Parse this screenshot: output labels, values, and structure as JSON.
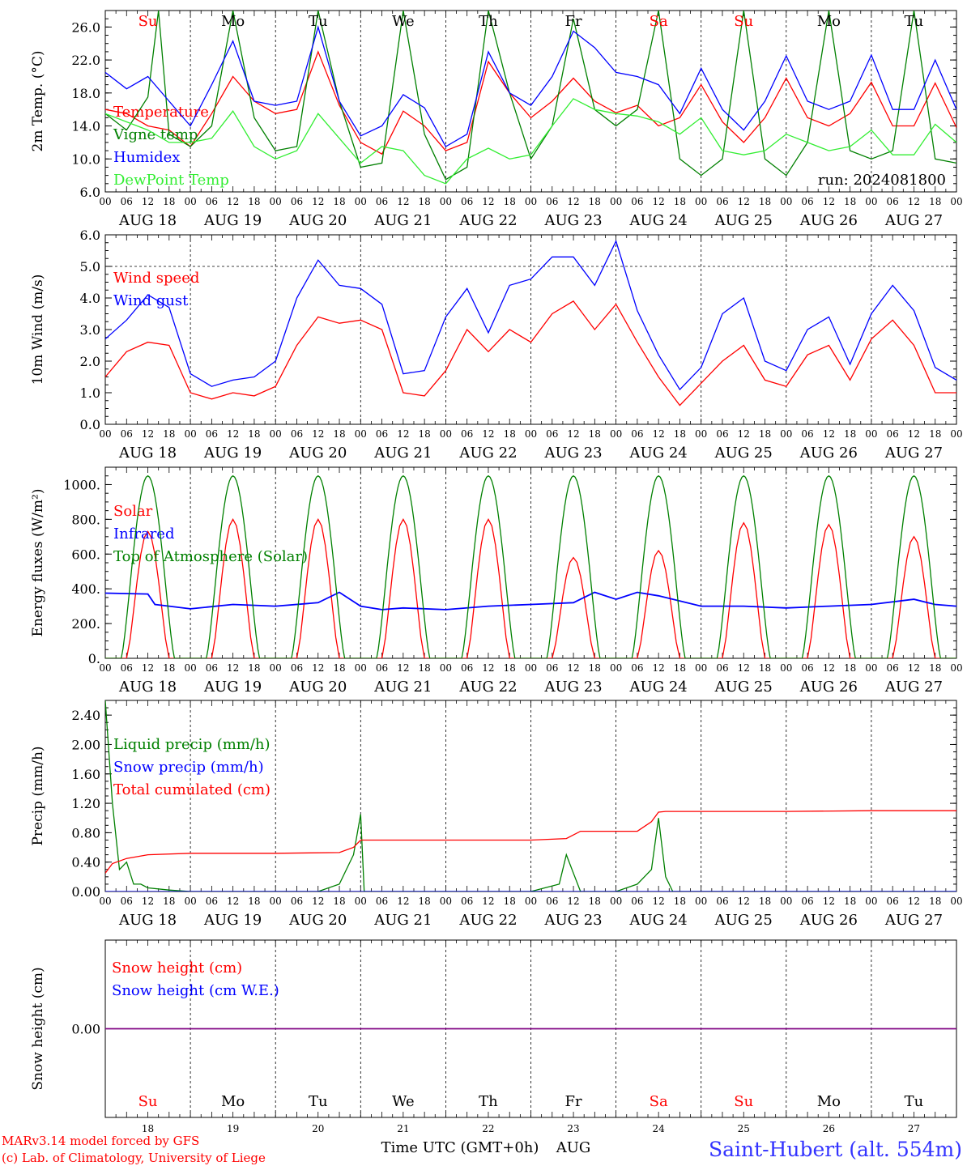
{
  "title": "Saint-Hubert (alt. 554m)",
  "run_label": "run: 2024081800",
  "footer": {
    "model_line": "MARv3.14 model forced by GFS",
    "copyright_line": "(c) Lab. of Climatology, University of Liege",
    "xaxis_title": "Time UTC (GMT+0h)",
    "month_label": "AUG"
  },
  "colors": {
    "red": "#ff0000",
    "green": "#008000",
    "blue": "#0000ff",
    "lightgreen": "#33ee33",
    "title": "#3333ff",
    "purple": "#800080"
  },
  "days": {
    "names": [
      "Su",
      "Mo",
      "Tu",
      "We",
      "Th",
      "Fr",
      "Sa",
      "Su",
      "Mo",
      "Tu"
    ],
    "name_colors": [
      "red",
      "black",
      "black",
      "black",
      "black",
      "black",
      "red",
      "red",
      "black",
      "black"
    ],
    "dates": [
      "AUG 18",
      "AUG 19",
      "AUG 20",
      "AUG 21",
      "AUG 22",
      "AUG 23",
      "AUG 24",
      "AUG 25",
      "AUG 26",
      "AUG 27"
    ],
    "numbers": [
      "18",
      "19",
      "20",
      "21",
      "22",
      "23",
      "24",
      "25",
      "26",
      "27"
    ],
    "hour_ticks": [
      "00",
      "06",
      "12",
      "18"
    ],
    "final_tick": "00"
  },
  "chart_data": [
    {
      "id": "temp",
      "type": "line",
      "ylabel": "2m Temp. (°C)",
      "ylim": [
        6,
        28
      ],
      "yticks": [
        "6.0",
        "10.0",
        "14.0",
        "18.0",
        "22.0",
        "26.0"
      ],
      "ytick_values": [
        6,
        10,
        14,
        18,
        22,
        26
      ],
      "x_unit": "hours since AUG 18 00 UTC",
      "series": [
        {
          "name": "Temperature",
          "color": "red",
          "x": [
            0,
            6,
            12,
            18,
            24,
            30,
            36,
            42,
            48,
            54,
            60,
            66,
            72,
            78,
            84,
            90,
            96,
            102,
            108,
            114,
            120,
            126,
            132,
            138,
            144,
            150,
            156,
            162,
            168,
            174,
            180,
            186,
            192,
            198,
            204,
            210,
            216,
            222,
            228,
            234,
            240
          ],
          "y": [
            16,
            15.5,
            14,
            13.5,
            11.5,
            15.5,
            20,
            17,
            15.5,
            16,
            23,
            16.5,
            12,
            10.6,
            15.8,
            14,
            11,
            12,
            21.8,
            18,
            15,
            17,
            19.8,
            17,
            15.6,
            16.5,
            14,
            15,
            19,
            14.5,
            12,
            15,
            19.8,
            15,
            14,
            15.5,
            19.3,
            14,
            14,
            19.2,
            13.8
          ]
        },
        {
          "name": "Vigne temp",
          "color": "green",
          "x": [
            0,
            6,
            12,
            15,
            18,
            24,
            30,
            36,
            42,
            48,
            54,
            60,
            66,
            72,
            78,
            84,
            90,
            96,
            102,
            108,
            114,
            120,
            126,
            132,
            138,
            144,
            150,
            156,
            162,
            168,
            174,
            180,
            186,
            192,
            198,
            204,
            210,
            216,
            222,
            228,
            234,
            240
          ],
          "y": [
            15.5,
            13.5,
            17.5,
            28,
            13,
            11.5,
            14,
            28,
            15,
            11,
            11.5,
            28,
            17,
            9,
            9.5,
            28,
            13,
            7.5,
            9,
            28,
            18,
            10,
            14,
            27,
            16,
            14,
            16,
            28,
            10,
            8,
            10,
            28,
            10,
            8,
            12,
            28,
            11,
            10,
            11,
            28,
            10,
            9.5
          ]
        },
        {
          "name": "Humidex",
          "color": "blue",
          "x": [
            0,
            6,
            12,
            18,
            24,
            30,
            36,
            42,
            48,
            54,
            60,
            66,
            72,
            78,
            84,
            90,
            96,
            102,
            108,
            114,
            120,
            126,
            132,
            138,
            144,
            150,
            156,
            162,
            168,
            174,
            180,
            186,
            192,
            198,
            204,
            210,
            216,
            222,
            228,
            234,
            240
          ],
          "y": [
            20.5,
            18.5,
            20,
            17,
            14,
            19,
            24.3,
            17,
            16.5,
            17,
            26,
            17,
            12.8,
            14,
            17.8,
            16.2,
            11.5,
            13,
            23,
            18,
            16.5,
            20,
            25.5,
            23.5,
            20.5,
            20,
            19,
            15.5,
            21,
            16,
            13.5,
            17,
            22.5,
            17,
            16,
            17,
            22.6,
            16,
            16,
            22,
            16
          ]
        },
        {
          "name": "DewPoint Temp",
          "color": "lightgreen",
          "x": [
            0,
            6,
            12,
            18,
            24,
            30,
            36,
            42,
            48,
            54,
            60,
            66,
            72,
            78,
            84,
            90,
            96,
            102,
            108,
            114,
            120,
            126,
            132,
            138,
            144,
            150,
            156,
            162,
            168,
            174,
            180,
            186,
            192,
            198,
            204,
            210,
            216,
            222,
            228,
            234,
            240
          ],
          "y": [
            15.5,
            14.5,
            13.5,
            12,
            12,
            12.5,
            15.8,
            11.5,
            10,
            11,
            15.5,
            12.5,
            9.5,
            11.5,
            11,
            8,
            7,
            10,
            11.3,
            10,
            10.5,
            14,
            17.3,
            16,
            15.5,
            15.2,
            14.5,
            13,
            15,
            11,
            10.5,
            11,
            13,
            12,
            11,
            11.5,
            13.5,
            10.5,
            10.5,
            14.2,
            12
          ]
        }
      ]
    },
    {
      "id": "wind",
      "type": "line",
      "ylabel": "10m Wind (m/s)",
      "ylim": [
        0,
        6
      ],
      "yticks": [
        "0.0",
        "1.0",
        "2.0",
        "3.0",
        "4.0",
        "5.0",
        "6.0"
      ],
      "ytick_values": [
        0,
        1,
        2,
        3,
        4,
        5,
        6
      ],
      "reference_line": 5.0,
      "series": [
        {
          "name": "Wind speed",
          "color": "red",
          "x": [
            0,
            6,
            12,
            18,
            24,
            30,
            36,
            42,
            48,
            54,
            60,
            66,
            72,
            78,
            84,
            90,
            96,
            102,
            108,
            114,
            120,
            126,
            132,
            138,
            144,
            150,
            156,
            162,
            168,
            174,
            180,
            186,
            192,
            198,
            204,
            210,
            216,
            222,
            228,
            234,
            240
          ],
          "y": [
            1.5,
            2.3,
            2.6,
            2.5,
            1.0,
            0.8,
            1.0,
            0.9,
            1.2,
            2.5,
            3.4,
            3.2,
            3.3,
            3.0,
            1.0,
            0.9,
            1.7,
            3.0,
            2.3,
            3.0,
            2.6,
            3.5,
            3.9,
            3.0,
            3.8,
            2.6,
            1.5,
            0.6,
            1.3,
            2.0,
            2.5,
            1.4,
            1.2,
            2.2,
            2.5,
            1.4,
            2.7,
            3.3,
            2.5,
            1.0,
            1.0
          ]
        },
        {
          "name": "Wind gust",
          "color": "blue",
          "x": [
            0,
            6,
            12,
            18,
            24,
            30,
            36,
            42,
            48,
            54,
            60,
            66,
            72,
            78,
            84,
            90,
            96,
            102,
            108,
            114,
            120,
            126,
            132,
            138,
            144,
            150,
            156,
            162,
            168,
            174,
            180,
            186,
            192,
            198,
            204,
            210,
            216,
            222,
            228,
            234,
            240
          ],
          "y": [
            2.7,
            3.3,
            4.1,
            3.7,
            1.6,
            1.2,
            1.4,
            1.5,
            2.0,
            4.0,
            5.2,
            4.4,
            4.3,
            3.8,
            1.6,
            1.7,
            3.4,
            4.3,
            2.9,
            4.4,
            4.6,
            5.3,
            5.3,
            4.4,
            5.8,
            3.6,
            2.2,
            1.1,
            1.8,
            3.5,
            4.0,
            2.0,
            1.7,
            3.0,
            3.4,
            1.9,
            3.5,
            4.4,
            3.6,
            1.8,
            1.4
          ]
        }
      ]
    },
    {
      "id": "energy",
      "type": "line",
      "ylabel": "Energy fluxes (W/m²)",
      "ylim": [
        0,
        1100
      ],
      "yticks": [
        "0.",
        "200.",
        "400.",
        "600.",
        "800.",
        "1000."
      ],
      "ytick_values": [
        0,
        200,
        400,
        600,
        800,
        1000
      ],
      "series": [
        {
          "name": "Solar",
          "color": "red",
          "day_peaks": [
            730,
            800,
            800,
            800,
            800,
            580,
            620,
            780,
            770,
            700
          ]
        },
        {
          "name": "Infrared",
          "color": "blue",
          "x": [
            0,
            12,
            14,
            18,
            24,
            36,
            48,
            60,
            66,
            72,
            78,
            84,
            96,
            108,
            120,
            132,
            138,
            144,
            150,
            156,
            168,
            180,
            192,
            204,
            216,
            228,
            234,
            240
          ],
          "y": [
            375,
            370,
            310,
            300,
            285,
            310,
            300,
            320,
            380,
            300,
            280,
            290,
            280,
            300,
            310,
            320,
            380,
            340,
            380,
            360,
            300,
            300,
            290,
            300,
            310,
            340,
            310,
            300
          ]
        },
        {
          "name": "Top of Atmosphere (Solar)",
          "color": "green",
          "peak": 1050
        }
      ]
    },
    {
      "id": "precip",
      "type": "line",
      "ylabel": "Precip (mm/h)",
      "ylim": [
        0,
        2.6
      ],
      "yticks": [
        "0.00",
        "0.40",
        "0.80",
        "1.20",
        "1.60",
        "2.00",
        "2.40"
      ],
      "ytick_values": [
        0,
        0.4,
        0.8,
        1.2,
        1.6,
        2.0,
        2.4
      ],
      "series": [
        {
          "name": "Liquid precip (mm/h)",
          "color": "green",
          "x": [
            0,
            2,
            4,
            6,
            8,
            10,
            12,
            18,
            24,
            60,
            66,
            70,
            72,
            73,
            120,
            128,
            130,
            132,
            134,
            144,
            150,
            154,
            156,
            158,
            160,
            240
          ],
          "y": [
            2.6,
            1.2,
            0.3,
            0.4,
            0.1,
            0.1,
            0.05,
            0.02,
            0,
            0,
            0.1,
            0.5,
            1.05,
            0,
            0,
            0.1,
            0.5,
            0.25,
            0,
            0,
            0.1,
            0.3,
            1.0,
            0.2,
            0,
            0
          ]
        },
        {
          "name": "Snow precip (mm/h)",
          "color": "blue",
          "x": [
            0,
            240
          ],
          "y": [
            0,
            0
          ]
        },
        {
          "name": "Total cumulated (cm)",
          "color": "red",
          "x": [
            0,
            2,
            6,
            12,
            24,
            48,
            66,
            70,
            72,
            74,
            96,
            120,
            130,
            134,
            140,
            150,
            154,
            156,
            158,
            168,
            192,
            216,
            240
          ],
          "y": [
            0.25,
            0.38,
            0.45,
            0.5,
            0.52,
            0.52,
            0.53,
            0.6,
            0.7,
            0.7,
            0.7,
            0.7,
            0.72,
            0.82,
            0.82,
            0.82,
            0.95,
            1.08,
            1.09,
            1.09,
            1.09,
            1.1,
            1.1
          ]
        }
      ]
    },
    {
      "id": "snow",
      "type": "line",
      "ylabel": "Snow height (cm)",
      "ylim": [
        -1,
        1
      ],
      "yticks": [
        "0.00"
      ],
      "ytick_values": [
        0
      ],
      "series": [
        {
          "name": "Snow height (cm)",
          "color": "red",
          "x": [
            0,
            240
          ],
          "y": [
            0,
            0
          ]
        },
        {
          "name": "Snow height (cm W.E.)",
          "color": "blue",
          "x": [
            0,
            240
          ],
          "y": [
            0,
            0
          ]
        }
      ]
    }
  ]
}
